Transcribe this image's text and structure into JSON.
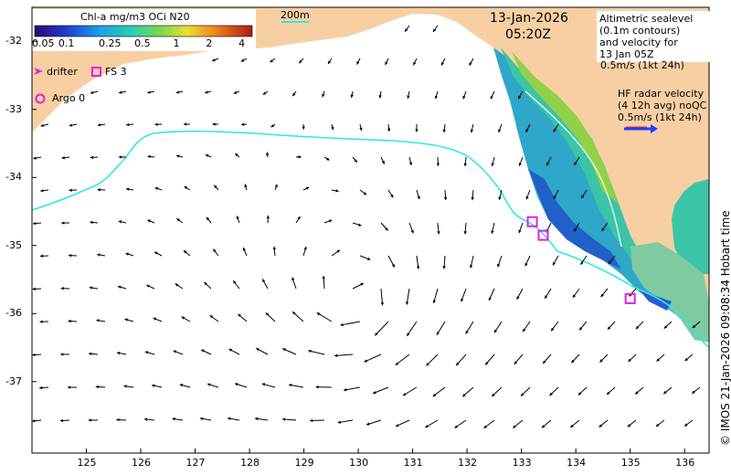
{
  "date": "13-Jan-2026",
  "time": "05:20Z",
  "colorbar": {
    "title": "Chl-a mg/m3 OCi N20",
    "ticks": [
      "0.05",
      "0.1",
      "0.25",
      "0.5",
      "1",
      "2",
      "4"
    ]
  },
  "scale_label": "200m",
  "legend": {
    "drifter": "drifter",
    "fs": "FS 3",
    "argo": "Argo 0"
  },
  "altimetry_note": [
    "Altimetric sealevel",
    "(0.1m contours)",
    "and velocity for",
    "13 Jan 05Z",
    "0.5m/s (1kt 24h)"
  ],
  "radar_note": [
    "HF radar velocity",
    "(4 12h avg) noQC",
    "0.5m/s (1kt 24h)"
  ],
  "credit": "© IMOS 21-Jan-2026 09:08:34 Hobart time",
  "axes": {
    "lat_ticks": [
      "-32",
      "-33",
      "-34",
      "-35",
      "-36",
      "-37"
    ],
    "lon_ticks": [
      "125",
      "126",
      "127",
      "128",
      "129",
      "130",
      "131",
      "132",
      "133",
      "134",
      "135",
      "136"
    ]
  },
  "colors": {
    "land": "#f8cfa3",
    "shelf_contour": "#2ee8e8",
    "marker": "#e020e0",
    "radar_arrow": "#1e3cff"
  },
  "eddy_center": {
    "lon": 130.0,
    "lat": -35.8
  },
  "stations": [
    {
      "label": "FS",
      "lon": 133.2,
      "lat": -34.65
    },
    {
      "label": "FS",
      "lon": 133.4,
      "lat": -34.85
    },
    {
      "label": "FS",
      "lon": 135.0,
      "lat": -35.78
    }
  ]
}
